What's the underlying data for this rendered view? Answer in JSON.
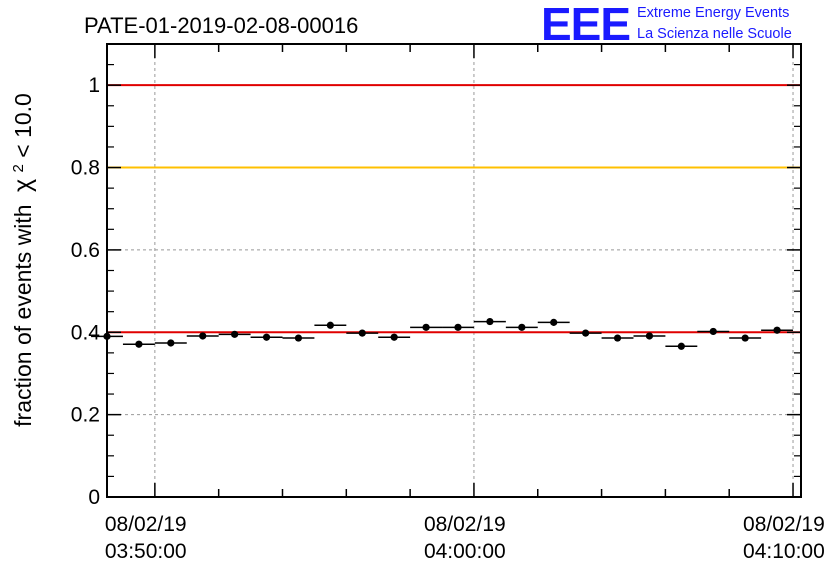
{
  "chart_data": {
    "type": "scatter",
    "title": "PATE-01-2019-02-08-00016",
    "ylabel": "fraction of events with",
    "ylabel_symbol": "χ",
    "ylabel_sup": "2",
    "ylabel_suffix": " < 10.0",
    "ylim": [
      0,
      1.1
    ],
    "xlim": [
      "08/02/19 03:48:30",
      "08/02/19 04:10:15"
    ],
    "yticks": [
      0,
      0.2,
      0.4,
      0.6,
      0.8,
      1
    ],
    "ytick_labels": [
      "0",
      "0.2",
      "0.4",
      "0.6",
      "0.8",
      "1"
    ],
    "xticks": [
      {
        "date": "08/02/19",
        "time": "03:50:00"
      },
      {
        "date": "08/02/19",
        "time": "04:00:00"
      },
      {
        "date": "08/02/19",
        "time": "04:10:00"
      }
    ],
    "grid": true,
    "reference_lines": [
      {
        "y": 1.0,
        "color": "#e00000"
      },
      {
        "y": 0.8,
        "color": "#ffc000"
      },
      {
        "y": 0.4,
        "color": "#e00000"
      }
    ],
    "points_color": "#000000",
    "series": [
      {
        "points": [
          {
            "x": "03:48:30",
            "y": 0.39
          },
          {
            "x": "03:49:30",
            "y": 0.371
          },
          {
            "x": "03:50:30",
            "y": 0.374
          },
          {
            "x": "03:51:30",
            "y": 0.391
          },
          {
            "x": "03:52:30",
            "y": 0.395
          },
          {
            "x": "03:53:30",
            "y": 0.388
          },
          {
            "x": "03:54:30",
            "y": 0.386
          },
          {
            "x": "03:55:30",
            "y": 0.417
          },
          {
            "x": "03:56:30",
            "y": 0.398
          },
          {
            "x": "03:57:30",
            "y": 0.388
          },
          {
            "x": "03:58:30",
            "y": 0.412
          },
          {
            "x": "03:59:30",
            "y": 0.412
          },
          {
            "x": "04:00:30",
            "y": 0.426
          },
          {
            "x": "04:01:30",
            "y": 0.412
          },
          {
            "x": "04:02:30",
            "y": 0.424
          },
          {
            "x": "04:03:30",
            "y": 0.398
          },
          {
            "x": "04:04:30",
            "y": 0.386
          },
          {
            "x": "04:05:30",
            "y": 0.391
          },
          {
            "x": "04:06:30",
            "y": 0.366
          },
          {
            "x": "04:07:30",
            "y": 0.402
          },
          {
            "x": "04:08:30",
            "y": 0.386
          },
          {
            "x": "04:09:30",
            "y": 0.405
          }
        ],
        "x_error_minutes": 0.5,
        "y_error": 0.008
      }
    ]
  },
  "logo": {
    "mark": "EEE",
    "line1": "Extreme Energy Events",
    "line2": "La Scienza nelle Scuole",
    "color": "#1a1aff"
  }
}
